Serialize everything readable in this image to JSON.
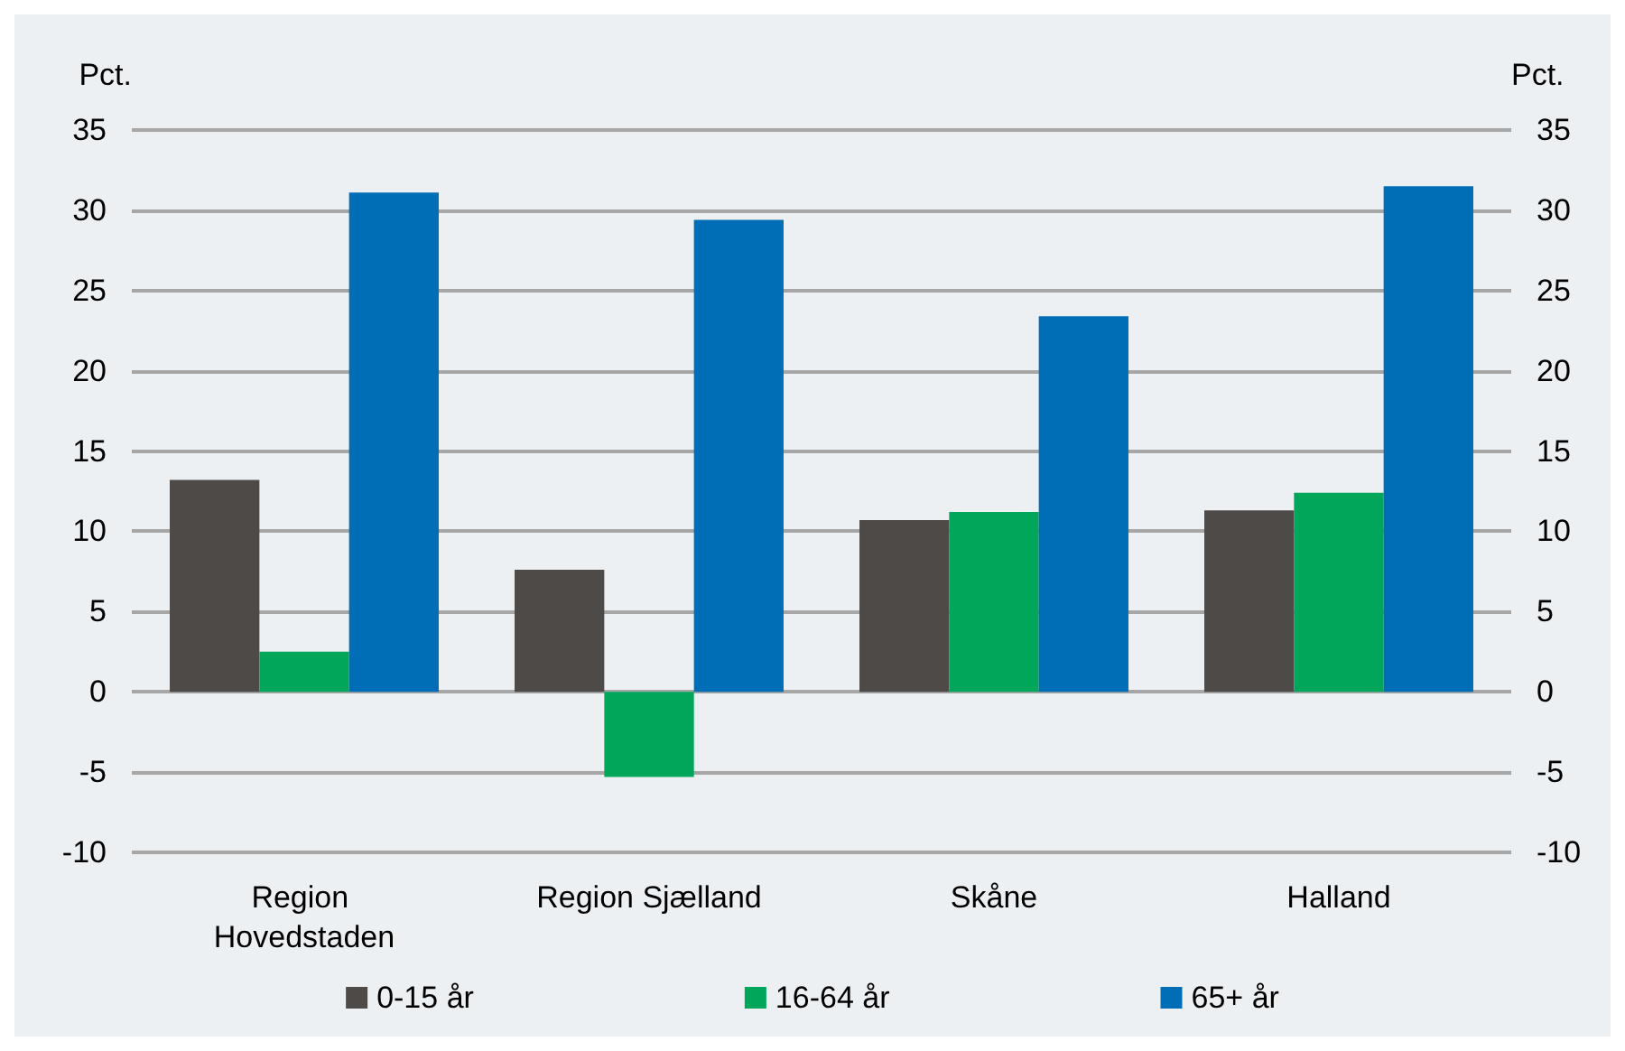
{
  "chart_data": {
    "type": "bar",
    "categories": [
      "Region Hovedstaden",
      "Region Sjælland",
      "Skåne",
      "Halland"
    ],
    "series": [
      {
        "name": "0-15 år",
        "color": "#4e4a47",
        "values": [
          13.2,
          7.6,
          10.7,
          11.3
        ]
      },
      {
        "name": "16-64 år",
        "color": "#00a65a",
        "values": [
          2.5,
          -5.3,
          11.2,
          12.4
        ]
      },
      {
        "name": "65+ år",
        "color": "#006eb6",
        "values": [
          31.1,
          29.4,
          23.4,
          31.5
        ]
      }
    ],
    "ylabel": "Pct.",
    "y2label": "Pct.",
    "ylim": [
      -10,
      35
    ],
    "yticks": [
      -10,
      -5,
      0,
      5,
      10,
      15,
      20,
      25,
      30,
      35
    ],
    "y2lim": [
      -10,
      35
    ],
    "y2ticks": [
      -10,
      -5,
      0,
      5,
      10,
      15,
      20,
      25,
      30,
      35
    ],
    "grid": "y",
    "legend": "bottom"
  }
}
